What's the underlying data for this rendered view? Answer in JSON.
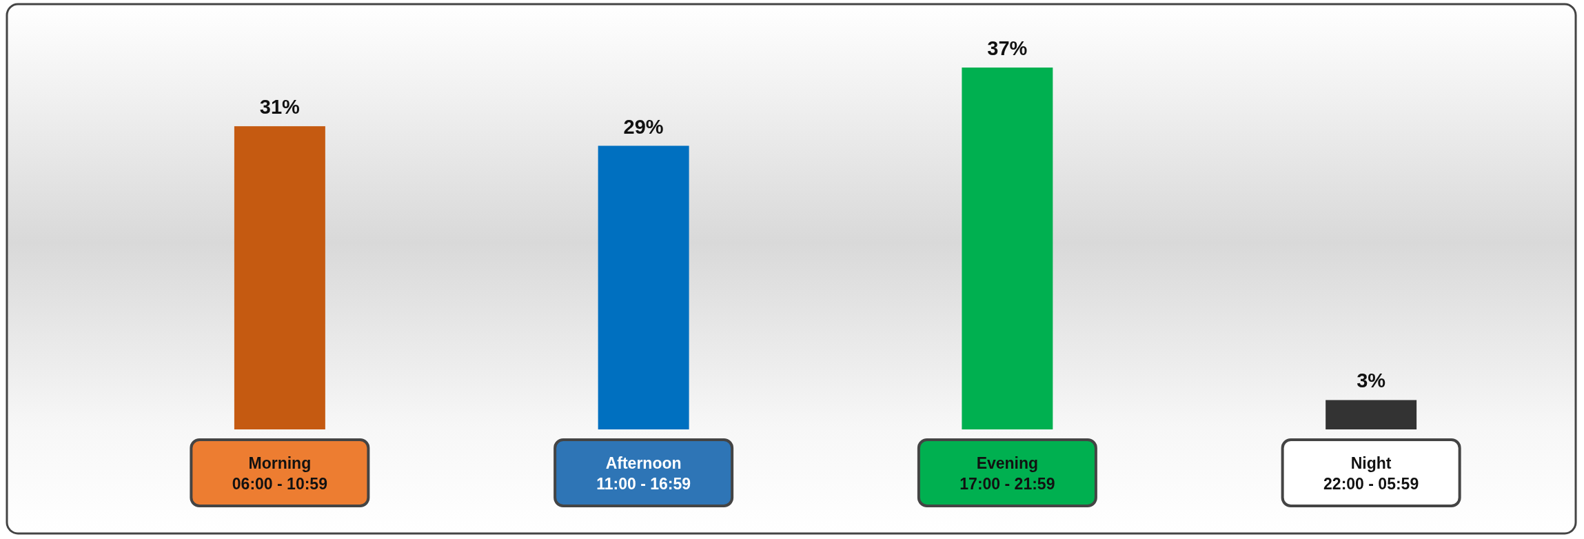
{
  "chart_data": {
    "type": "bar",
    "categories": [
      "Morning\n06:00 - 10:59",
      "Afternoon\n11:00 - 16:59",
      "Evening\n17:00 - 21:59",
      "Night\n22:00 - 05:59"
    ],
    "values": [
      31,
      29,
      37,
      3
    ],
    "colors": [
      "#c55a11",
      "#0070c0",
      "#00b050",
      "#333333"
    ],
    "value_labels": [
      "31%",
      "29%",
      "37%",
      "3%"
    ]
  }
}
